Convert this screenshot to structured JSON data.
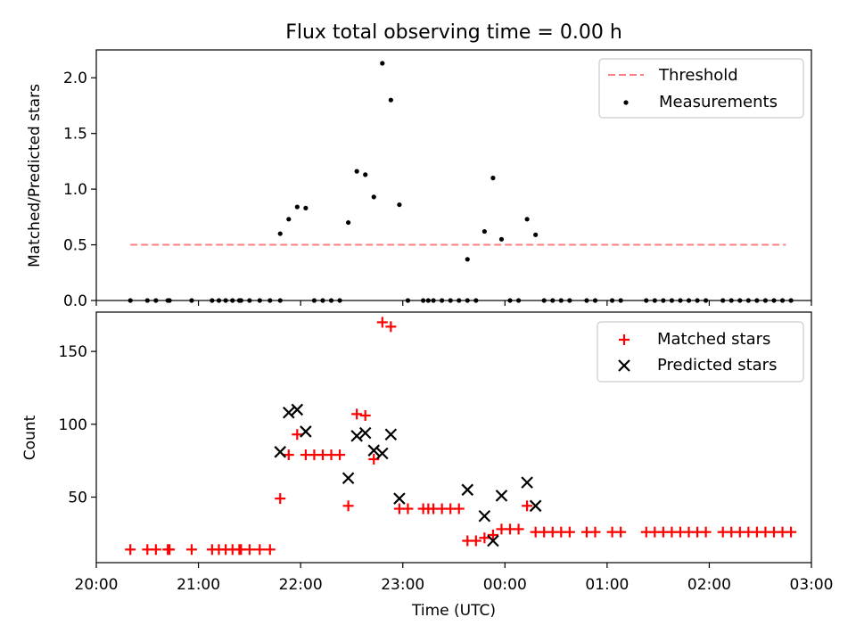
{
  "figure": {
    "title": "Flux total observing time = 0.00 h"
  },
  "colors": {
    "threshold": "#ff8080",
    "measurement": "#000000",
    "matched": "#ff0000",
    "predicted": "#000000"
  },
  "chart_data": [
    {
      "type": "scatter",
      "panel": "top",
      "title": "Flux total observing time = 0.00 h",
      "xlabel": "",
      "ylabel": "Matched/Predicted stars",
      "xlim": [
        "20:00",
        "03:00"
      ],
      "ylim": [
        0,
        2.25
      ],
      "yticks": [
        "0.0",
        "0.5",
        "1.0",
        "1.5",
        "2.0"
      ],
      "legend": "upper right",
      "grid": false,
      "threshold": {
        "name": "Threshold",
        "value": 0.5,
        "x_start": "20:20",
        "x_end": "02:45",
        "style": "dashed"
      },
      "series": [
        {
          "name": "Measurements",
          "marker": "dot",
          "points": [
            [
              "20:20",
              0.0
            ],
            [
              "20:30",
              0.0
            ],
            [
              "20:35",
              0.0
            ],
            [
              "20:42",
              0.0
            ],
            [
              "20:43",
              0.0
            ],
            [
              "20:56",
              0.0
            ],
            [
              "21:08",
              0.0
            ],
            [
              "21:12",
              0.0
            ],
            [
              "21:16",
              0.0
            ],
            [
              "21:20",
              0.0
            ],
            [
              "21:24",
              0.0
            ],
            [
              "21:25",
              0.0
            ],
            [
              "21:30",
              0.0
            ],
            [
              "21:36",
              0.0
            ],
            [
              "21:42",
              0.0
            ],
            [
              "21:48",
              0.0
            ],
            [
              "21:48",
              0.6
            ],
            [
              "21:53",
              0.73
            ],
            [
              "21:58",
              0.84
            ],
            [
              "22:03",
              0.83
            ],
            [
              "22:08",
              0.0
            ],
            [
              "22:13",
              0.0
            ],
            [
              "22:18",
              0.0
            ],
            [
              "22:23",
              0.0
            ],
            [
              "22:28",
              0.7
            ],
            [
              "22:33",
              1.16
            ],
            [
              "22:38",
              1.13
            ],
            [
              "22:43",
              0.93
            ],
            [
              "22:48",
              2.13
            ],
            [
              "22:53",
              1.8
            ],
            [
              "22:58",
              0.86
            ],
            [
              "23:03",
              0.0
            ],
            [
              "23:12",
              0.0
            ],
            [
              "23:15",
              0.0
            ],
            [
              "23:18",
              0.0
            ],
            [
              "23:23",
              0.0
            ],
            [
              "23:28",
              0.0
            ],
            [
              "23:33",
              0.0
            ],
            [
              "23:38",
              0.0
            ],
            [
              "23:38",
              0.37
            ],
            [
              "23:43",
              0.0
            ],
            [
              "23:48",
              0.62
            ],
            [
              "23:53",
              1.1
            ],
            [
              "23:58",
              0.55
            ],
            [
              "00:03",
              0.0
            ],
            [
              "00:08",
              0.0
            ],
            [
              "00:13",
              0.73
            ],
            [
              "00:18",
              0.59
            ],
            [
              "00:23",
              0.0
            ],
            [
              "00:28",
              0.0
            ],
            [
              "00:33",
              0.0
            ],
            [
              "00:38",
              0.0
            ],
            [
              "00:48",
              0.0
            ],
            [
              "00:53",
              0.0
            ],
            [
              "01:03",
              0.0
            ],
            [
              "01:08",
              0.0
            ],
            [
              "01:23",
              0.0
            ],
            [
              "01:28",
              0.0
            ],
            [
              "01:33",
              0.0
            ],
            [
              "01:38",
              0.0
            ],
            [
              "01:43",
              0.0
            ],
            [
              "01:48",
              0.0
            ],
            [
              "01:53",
              0.0
            ],
            [
              "01:58",
              0.0
            ],
            [
              "02:08",
              0.0
            ],
            [
              "02:13",
              0.0
            ],
            [
              "02:18",
              0.0
            ],
            [
              "02:23",
              0.0
            ],
            [
              "02:28",
              0.0
            ],
            [
              "02:33",
              0.0
            ],
            [
              "02:38",
              0.0
            ],
            [
              "02:43",
              0.0
            ],
            [
              "02:48",
              0.0
            ]
          ]
        }
      ]
    },
    {
      "type": "scatter",
      "panel": "bottom",
      "title": "",
      "xlabel": "Time (UTC)",
      "ylabel": "Count",
      "xlim": [
        "20:00",
        "03:00"
      ],
      "ylim": [
        5,
        177
      ],
      "yticks": [
        "50",
        "100",
        "150"
      ],
      "xticks": [
        "20:00",
        "21:00",
        "22:00",
        "23:00",
        "00:00",
        "01:00",
        "02:00",
        "03:00"
      ],
      "legend": "upper right",
      "grid": false,
      "series": [
        {
          "name": "Matched stars",
          "marker": "plus",
          "points": [
            [
              "20:20",
              14
            ],
            [
              "20:30",
              14
            ],
            [
              "20:35",
              14
            ],
            [
              "20:42",
              14
            ],
            [
              "20:43",
              14
            ],
            [
              "20:56",
              14
            ],
            [
              "21:08",
              14
            ],
            [
              "21:12",
              14
            ],
            [
              "21:16",
              14
            ],
            [
              "21:20",
              14
            ],
            [
              "21:24",
              14
            ],
            [
              "21:25",
              14
            ],
            [
              "21:30",
              14
            ],
            [
              "21:36",
              14
            ],
            [
              "21:42",
              14
            ],
            [
              "21:48",
              49
            ],
            [
              "21:53",
              79
            ],
            [
              "21:58",
              93
            ],
            [
              "22:03",
              79
            ],
            [
              "22:08",
              79
            ],
            [
              "22:13",
              79
            ],
            [
              "22:18",
              79
            ],
            [
              "22:23",
              79
            ],
            [
              "22:28",
              44
            ],
            [
              "22:33",
              107
            ],
            [
              "22:38",
              106
            ],
            [
              "22:43",
              76
            ],
            [
              "22:48",
              170
            ],
            [
              "22:53",
              167
            ],
            [
              "22:58",
              42
            ],
            [
              "23:03",
              42
            ],
            [
              "23:12",
              42
            ],
            [
              "23:15",
              42
            ],
            [
              "23:18",
              42
            ],
            [
              "23:23",
              42
            ],
            [
              "23:28",
              42
            ],
            [
              "23:33",
              42
            ],
            [
              "23:38",
              20
            ],
            [
              "23:43",
              20
            ],
            [
              "23:48",
              22
            ],
            [
              "23:53",
              24
            ],
            [
              "23:58",
              28
            ],
            [
              "00:03",
              28
            ],
            [
              "00:08",
              28
            ],
            [
              "00:13",
              44
            ],
            [
              "00:18",
              26
            ],
            [
              "00:23",
              26
            ],
            [
              "00:28",
              26
            ],
            [
              "00:33",
              26
            ],
            [
              "00:38",
              26
            ],
            [
              "00:48",
              26
            ],
            [
              "00:53",
              26
            ],
            [
              "01:03",
              26
            ],
            [
              "01:08",
              26
            ],
            [
              "01:23",
              26
            ],
            [
              "01:28",
              26
            ],
            [
              "01:33",
              26
            ],
            [
              "01:38",
              26
            ],
            [
              "01:43",
              26
            ],
            [
              "01:48",
              26
            ],
            [
              "01:53",
              26
            ],
            [
              "01:58",
              26
            ],
            [
              "02:08",
              26
            ],
            [
              "02:13",
              26
            ],
            [
              "02:18",
              26
            ],
            [
              "02:23",
              26
            ],
            [
              "02:28",
              26
            ],
            [
              "02:33",
              26
            ],
            [
              "02:38",
              26
            ],
            [
              "02:43",
              26
            ],
            [
              "02:48",
              26
            ]
          ]
        },
        {
          "name": "Predicted stars",
          "marker": "x",
          "points": [
            [
              "21:48",
              81
            ],
            [
              "21:53",
              108
            ],
            [
              "21:58",
              110
            ],
            [
              "22:03",
              95
            ],
            [
              "22:28",
              63
            ],
            [
              "22:33",
              92
            ],
            [
              "22:38",
              94
            ],
            [
              "22:43",
              82
            ],
            [
              "22:48",
              80
            ],
            [
              "22:53",
              93
            ],
            [
              "22:58",
              49
            ],
            [
              "23:38",
              55
            ],
            [
              "23:48",
              37
            ],
            [
              "23:53",
              20
            ],
            [
              "23:58",
              51
            ],
            [
              "00:13",
              60
            ],
            [
              "00:18",
              44
            ]
          ]
        }
      ]
    }
  ]
}
